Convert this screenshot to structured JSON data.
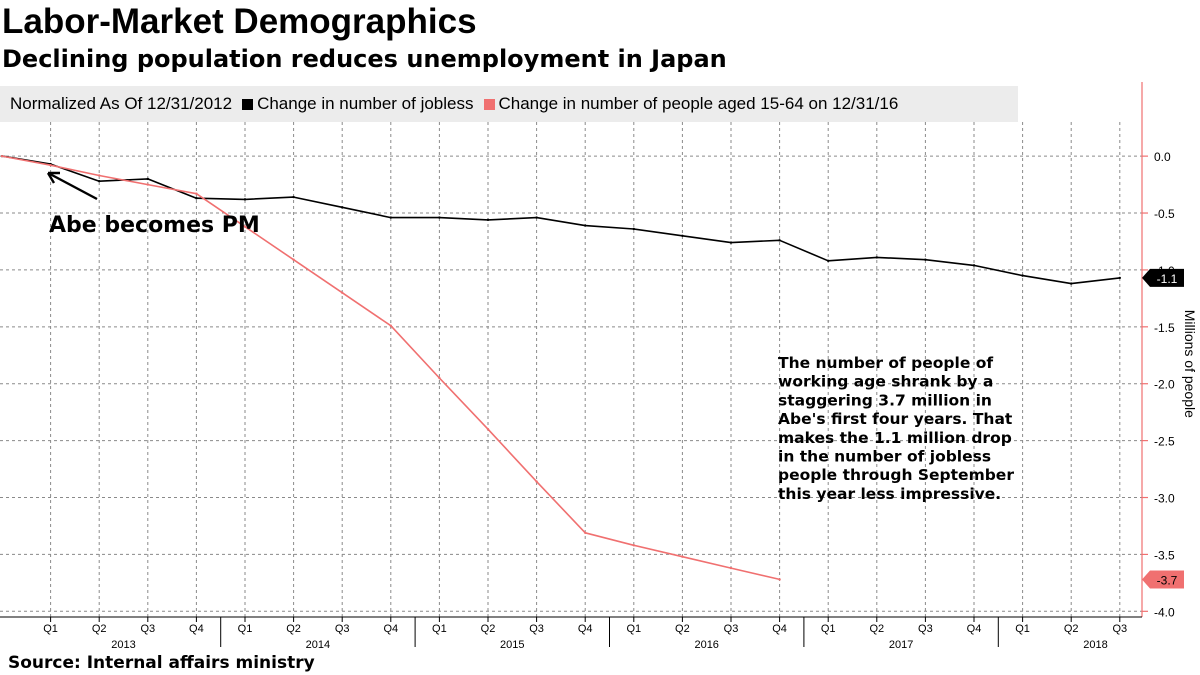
{
  "header": {
    "title": "Labor-Market Demographics",
    "subtitle": "Declining population reduces unemployment in Japan"
  },
  "legend": {
    "normalized": "Normalized As Of 12/31/2012",
    "entries": [
      {
        "label": "Change in number of jobless",
        "color": "#000000"
      },
      {
        "label": "Change in number of people aged 15-64 on 12/31/16",
        "color": "#f07070"
      }
    ]
  },
  "source": "Source: Internal affairs ministry",
  "chart_data": {
    "type": "line",
    "x_categories": [
      "",
      "Q1",
      "Q2",
      "Q3",
      "Q4",
      "Q1",
      "Q2",
      "Q3",
      "Q4",
      "Q1",
      "Q2",
      "Q3",
      "Q4",
      "Q1",
      "Q2",
      "Q3",
      "Q4",
      "Q1",
      "Q2",
      "Q3",
      "Q4",
      "Q1",
      "Q2",
      "Q3"
    ],
    "year_labels": [
      {
        "label": "2013",
        "center_index": 2
      },
      {
        "label": "2014",
        "center_index": 6
      },
      {
        "label": "2015",
        "center_index": 10
      },
      {
        "label": "2016",
        "center_index": 14
      },
      {
        "label": "2017",
        "center_index": 18
      },
      {
        "label": "2018",
        "center_index": 22
      }
    ],
    "series": [
      {
        "name": "Change in number of jobless",
        "color": "#000000",
        "values": [
          0.0,
          -0.07,
          -0.22,
          -0.2,
          -0.37,
          -0.38,
          -0.36,
          -0.45,
          -0.54,
          -0.54,
          -0.56,
          -0.54,
          -0.61,
          -0.64,
          -0.7,
          -0.76,
          -0.74,
          -0.92,
          -0.89,
          -0.91,
          -0.96,
          -1.05,
          -1.12,
          -1.07
        ],
        "end_label": "-1.1"
      },
      {
        "name": "Change in number of people aged 15-64 on 12/31/16",
        "color": "#f07070",
        "values": [
          0.0,
          -0.08,
          -0.17,
          -0.25,
          -0.33,
          -0.62,
          -0.91,
          -1.2,
          -1.49,
          -1.95,
          -2.4,
          -2.86,
          -3.31,
          -3.42,
          -3.52,
          -3.62,
          -3.72,
          null,
          null,
          null,
          null,
          null,
          null,
          null
        ],
        "end_label": "-3.7"
      }
    ],
    "y_axis": {
      "ylim": [
        -4.05,
        0.3
      ],
      "ticks": [
        0.0,
        -0.5,
        -1.0,
        -1.5,
        -2.0,
        -2.5,
        -3.0,
        -3.5,
        -4.0
      ],
      "tick_labels": [
        "0.0",
        "-0.5",
        "-1.0",
        "-1.5",
        "-2.0",
        "-2.5",
        "-3.0",
        "-3.5",
        "-4.0"
      ],
      "label": "Millions of people",
      "position": "right",
      "color": "#f07070"
    },
    "grid": true,
    "annotations": [
      {
        "text": "Abe becomes PM",
        "arrow_to_index": 1
      },
      {
        "text": "The number of people of working age shrank by a staggering 3.7 million in Abe's first four years. That makes the 1.1 million drop in the number of jobless people through September this year less impressive."
      }
    ]
  }
}
